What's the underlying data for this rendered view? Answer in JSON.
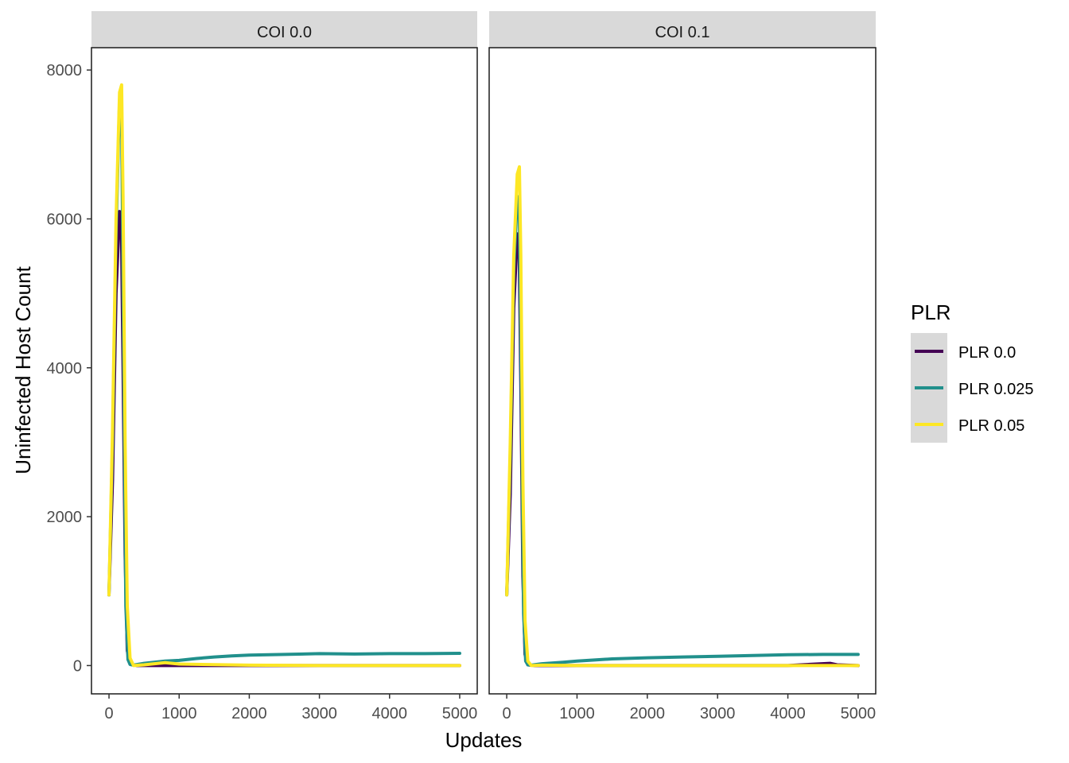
{
  "chart_data": {
    "type": "line",
    "xlabel": "Updates",
    "ylabel": "Uninfected Host Count",
    "xlim": [
      -250,
      5250
    ],
    "ylim": [
      -380,
      8300
    ],
    "xticks": [
      0,
      1000,
      2000,
      3000,
      4000,
      5000
    ],
    "yticks": [
      0,
      2000,
      4000,
      6000,
      8000
    ],
    "grid": false,
    "legend": {
      "title": "PLR",
      "position": "right",
      "entries": [
        {
          "label": "PLR 0.0",
          "color": "#440154"
        },
        {
          "label": "PLR 0.025",
          "color": "#21908C"
        },
        {
          "label": "PLR 0.05",
          "color": "#FDE725"
        }
      ]
    },
    "panels": [
      {
        "strip": "COI 0.0",
        "series": [
          {
            "key": "PLR 0.0",
            "color": "#440154",
            "x": [
              0,
              50,
              100,
              150,
              175,
              200,
              230,
              260,
              300,
              400,
              600,
              800,
              1000,
              2000,
              3000,
              4000,
              5000
            ],
            "y": [
              950,
              2500,
              5000,
              6100,
              6050,
              4000,
              1500,
              200,
              20,
              0,
              0,
              0,
              0,
              0,
              0,
              0,
              0
            ]
          },
          {
            "key": "PLR 0.025",
            "color": "#21908C",
            "x": [
              0,
              50,
              100,
              150,
              180,
              210,
              240,
              270,
              300,
              350,
              500,
              800,
              1000,
              1250,
              1500,
              1750,
              2000,
              2500,
              3000,
              3500,
              4000,
              4500,
              5000
            ],
            "y": [
              950,
              3000,
              5800,
              7600,
              7400,
              4000,
              800,
              80,
              15,
              5,
              30,
              60,
              70,
              95,
              115,
              130,
              140,
              150,
              160,
              155,
              160,
              160,
              165
            ]
          },
          {
            "key": "PLR 0.05",
            "color": "#FDE725",
            "x": [
              0,
              50,
              100,
              150,
              180,
              200,
              230,
              260,
              300,
              350,
              500,
              800,
              1000,
              2000,
              3000,
              4000,
              5000
            ],
            "y": [
              950,
              3200,
              6000,
              7700,
              7800,
              6300,
              3000,
              800,
              100,
              0,
              10,
              40,
              20,
              5,
              0,
              0,
              0
            ]
          }
        ]
      },
      {
        "strip": "COI 0.1",
        "series": [
          {
            "key": "PLR 0.0",
            "color": "#440154",
            "x": [
              0,
              50,
              100,
              150,
              175,
              200,
              230,
              260,
              300,
              400,
              1000,
              2000,
              3000,
              4000,
              4600,
              4700,
              5000
            ],
            "y": [
              950,
              2300,
              4800,
              5800,
              5700,
              3800,
              1200,
              150,
              10,
              0,
              0,
              0,
              0,
              0,
              30,
              10,
              0
            ]
          },
          {
            "key": "PLR 0.025",
            "color": "#21908C",
            "x": [
              0,
              50,
              100,
              150,
              180,
              210,
              240,
              270,
              300,
              350,
              500,
              800,
              1000,
              1250,
              1500,
              2000,
              2500,
              3000,
              3500,
              4000,
              4500,
              5000
            ],
            "y": [
              950,
              2800,
              5300,
              6300,
              6000,
              3500,
              700,
              60,
              10,
              5,
              25,
              45,
              60,
              75,
              90,
              105,
              115,
              125,
              135,
              145,
              150,
              150
            ]
          },
          {
            "key": "PLR 0.05",
            "color": "#FDE725",
            "x": [
              0,
              50,
              100,
              150,
              180,
              200,
              230,
              260,
              300,
              350,
              500,
              1000,
              2000,
              3000,
              4000,
              5000
            ],
            "y": [
              950,
              3000,
              5500,
              6600,
              6700,
              5500,
              2500,
              600,
              60,
              0,
              5,
              0,
              0,
              0,
              0,
              0
            ]
          }
        ]
      }
    ]
  }
}
